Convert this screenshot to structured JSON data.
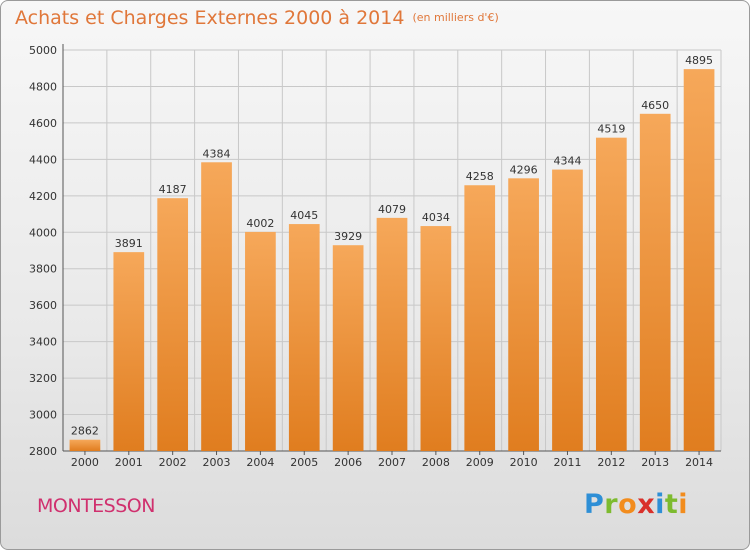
{
  "title": "Achats et Charges Externes 2000 à 2014",
  "subtitle": "(en milliers d'€)",
  "city": "MONTESSON",
  "logo": {
    "letters": [
      "P",
      "r",
      "o",
      "x",
      "i",
      "t",
      "i"
    ],
    "colors": [
      "#2e8fd6",
      "#7dbb2f",
      "#f28c1d",
      "#d9302a",
      "#2e8fd6",
      "#7dbb2f",
      "#f28c1d"
    ]
  },
  "colors": {
    "bar_light": "#f6a85a",
    "bar_dark": "#e07d1f",
    "grid": "#c8c8c8",
    "text": "#333333"
  },
  "chart_data": {
    "type": "bar",
    "title": "Achats et Charges Externes 2000 à 2014",
    "xlabel": "",
    "ylabel": "",
    "categories": [
      "2000",
      "2001",
      "2002",
      "2003",
      "2004",
      "2005",
      "2006",
      "2007",
      "2008",
      "2009",
      "2010",
      "2011",
      "2012",
      "2013",
      "2014"
    ],
    "values": [
      2862,
      3891,
      4187,
      4384,
      4002,
      4045,
      3929,
      4079,
      4034,
      4258,
      4296,
      4344,
      4519,
      4650,
      4895
    ],
    "ylim": [
      2800,
      5000
    ],
    "yticks": [
      2800,
      3000,
      3200,
      3400,
      3600,
      3800,
      4000,
      4200,
      4400,
      4600,
      4800,
      5000
    ],
    "grid": true,
    "legend": "none"
  }
}
